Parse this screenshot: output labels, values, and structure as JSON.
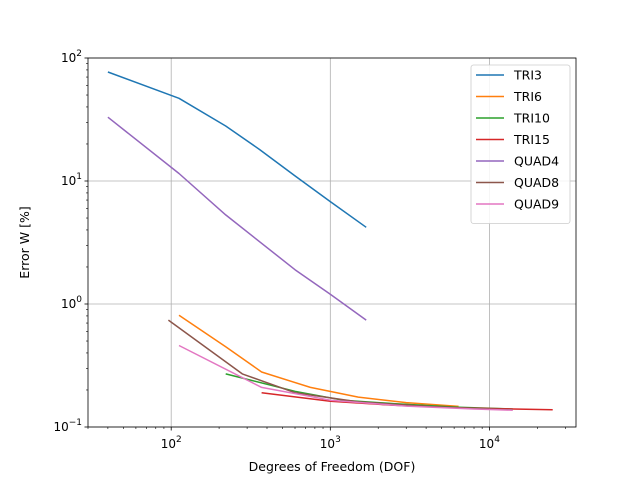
{
  "chart_data": {
    "type": "line",
    "xscale": "log",
    "yscale": "log",
    "xlabel": "Degrees of Freedom (DOF)",
    "ylabel": "Error W [%]",
    "xlim": [
      30,
      35000
    ],
    "ylim": [
      0.1,
      100
    ],
    "grid": true,
    "legend_position": "top-right",
    "x_ticks": [
      {
        "value": 100,
        "base": "10",
        "exp": "2"
      },
      {
        "value": 1000,
        "base": "10",
        "exp": "3"
      },
      {
        "value": 10000,
        "base": "10",
        "exp": "4"
      }
    ],
    "y_ticks": [
      {
        "value": 0.1,
        "base": "10",
        "exp": "−1"
      },
      {
        "value": 1,
        "base": "10",
        "exp": "0"
      },
      {
        "value": 10,
        "base": "10",
        "exp": "1"
      },
      {
        "value": 100,
        "base": "10",
        "exp": "2"
      }
    ],
    "series": [
      {
        "name": "TRI3",
        "color": "#1f77b4",
        "points": [
          [
            40,
            77
          ],
          [
            112,
            47
          ],
          [
            220,
            28
          ],
          [
            360,
            18
          ],
          [
            600,
            11
          ],
          [
            1000,
            6.8
          ],
          [
            1680,
            4.2
          ]
        ]
      },
      {
        "name": "TRI6",
        "color": "#ff7f0e",
        "points": [
          [
            112,
            0.81
          ],
          [
            220,
            0.45
          ],
          [
            370,
            0.28
          ],
          [
            750,
            0.21
          ],
          [
            1500,
            0.175
          ],
          [
            3000,
            0.158
          ],
          [
            6400,
            0.147
          ]
        ]
      },
      {
        "name": "TRI10",
        "color": "#2ca02c",
        "points": [
          [
            220,
            0.27
          ],
          [
            600,
            0.195
          ],
          [
            1200,
            0.165
          ],
          [
            2500,
            0.155
          ],
          [
            6400,
            0.145
          ],
          [
            14000,
            0.14
          ]
        ]
      },
      {
        "name": "TRI15",
        "color": "#d62728",
        "points": [
          [
            370,
            0.19
          ],
          [
            1000,
            0.162
          ],
          [
            2500,
            0.15
          ],
          [
            6400,
            0.143
          ],
          [
            14000,
            0.14
          ],
          [
            25000,
            0.138
          ]
        ]
      },
      {
        "name": "QUAD4",
        "color": "#9467bd",
        "points": [
          [
            40,
            33
          ],
          [
            112,
            11.5
          ],
          [
            220,
            5.3
          ],
          [
            600,
            1.9
          ],
          [
            1000,
            1.2
          ],
          [
            1680,
            0.74
          ]
        ]
      },
      {
        "name": "QUAD8",
        "color": "#8c564b",
        "points": [
          [
            96,
            0.74
          ],
          [
            280,
            0.27
          ],
          [
            600,
            0.19
          ],
          [
            1500,
            0.16
          ],
          [
            5000,
            0.145
          ],
          [
            14000,
            0.138
          ]
        ]
      },
      {
        "name": "QUAD9",
        "color": "#e377c2",
        "points": [
          [
            112,
            0.46
          ],
          [
            370,
            0.21
          ],
          [
            1000,
            0.165
          ],
          [
            3000,
            0.148
          ],
          [
            8000,
            0.14
          ],
          [
            14000,
            0.137
          ]
        ]
      }
    ]
  }
}
